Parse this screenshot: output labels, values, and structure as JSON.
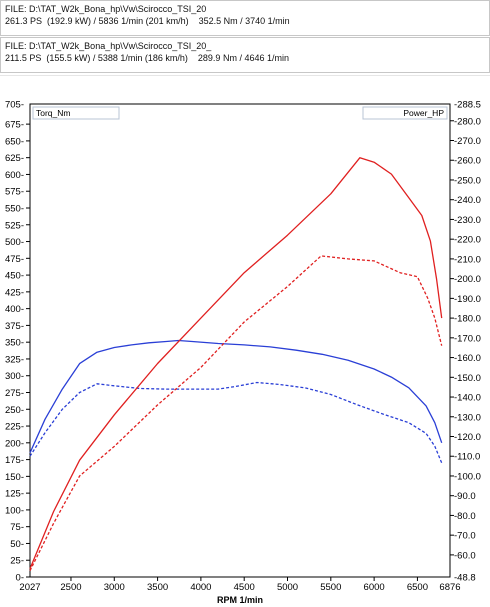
{
  "files": [
    {
      "path": "FILE: D:\\TAT_W2k_Bona_hp\\Vw\\Scirocco_TSI_20",
      "summary": "261.3 PS  (192.9 kW) / 5836 1/min (201 km/h)    352.5 Nm / 3740 1/min"
    },
    {
      "path": "FILE: D:\\TAT_W2k_Bona_hp\\Vw\\Scirocco_TSI_20_",
      "summary": "211.5 PS  (155.5 kW) / 5388 1/min (186 km/h)    289.9 Nm / 4646 1/min"
    }
  ],
  "chart_data": {
    "type": "line",
    "xlabel": "RPM  1/min",
    "x_min_label": "2027",
    "x_max_label": "6876",
    "xlim": [
      2027,
      6876
    ],
    "x_ticks": [
      2500,
      3000,
      3500,
      4000,
      4500,
      5000,
      5500,
      6000,
      6500
    ],
    "left_axis": {
      "label": "Torq_Nm",
      "ylim": [
        0,
        705
      ],
      "top_label": "705",
      "ticks": [
        0,
        25,
        50,
        75,
        100,
        125,
        150,
        175,
        200,
        225,
        250,
        275,
        300,
        325,
        350,
        375,
        400,
        425,
        450,
        475,
        500,
        525,
        550,
        575,
        600,
        625,
        650,
        675
      ]
    },
    "right_axis": {
      "label": "Power_HP",
      "ylim": [
        48.8,
        288.5
      ],
      "bottom_label": "48.8",
      "top_label": "288.5",
      "ticks": [
        60,
        70,
        80,
        90,
        100,
        110,
        120,
        130,
        140,
        150,
        160,
        170,
        180,
        190,
        200,
        210,
        220,
        230,
        240,
        250,
        260,
        270,
        280
      ]
    },
    "grid": false,
    "series": [
      {
        "axis": "left",
        "color": "#2a3fd6",
        "dash": false,
        "x": [
          2027,
          2200,
          2400,
          2600,
          2800,
          3000,
          3200,
          3400,
          3600,
          3740,
          3900,
          4200,
          4500,
          4800,
          5100,
          5400,
          5700,
          6000,
          6200,
          6400,
          6600,
          6700,
          6780
        ],
        "y": [
          185,
          235,
          280,
          318,
          335,
          342,
          346,
          349,
          351,
          352.5,
          351,
          348,
          346,
          343,
          338,
          332,
          323,
          310,
          298,
          282,
          255,
          230,
          200
        ]
      },
      {
        "axis": "left",
        "color": "#2a3fd6",
        "dash": true,
        "x": [
          2027,
          2200,
          2400,
          2600,
          2800,
          3000,
          3300,
          3600,
          3900,
          4200,
          4400,
          4646,
          4900,
          5200,
          5500,
          5800,
          6100,
          6400,
          6600,
          6700,
          6780
        ],
        "y": [
          180,
          215,
          250,
          275,
          288,
          285,
          281,
          280,
          280,
          280,
          284,
          289.9,
          287,
          282,
          272,
          257,
          243,
          230,
          214,
          195,
          170
        ]
      },
      {
        "axis": "right",
        "color": "#e02020",
        "dash": false,
        "x": [
          2027,
          2300,
          2600,
          3000,
          3500,
          4000,
          4500,
          5000,
          5500,
          5836,
          6000,
          6200,
          6400,
          6550,
          6650,
          6720,
          6780
        ],
        "y": [
          53,
          82,
          108,
          131,
          157,
          180,
          203,
          222,
          243,
          261.3,
          259,
          253,
          241,
          232,
          219,
          200,
          180
        ]
      },
      {
        "axis": "right",
        "color": "#e02020",
        "dash": true,
        "x": [
          2027,
          2300,
          2600,
          3000,
          3500,
          4000,
          4500,
          5000,
          5388,
          5700,
          6000,
          6300,
          6500,
          6620,
          6700,
          6780
        ],
        "y": [
          52,
          76,
          100,
          115,
          136,
          155,
          178,
          196,
          211.5,
          210,
          209,
          203,
          201,
          190,
          180,
          166
        ]
      }
    ]
  }
}
